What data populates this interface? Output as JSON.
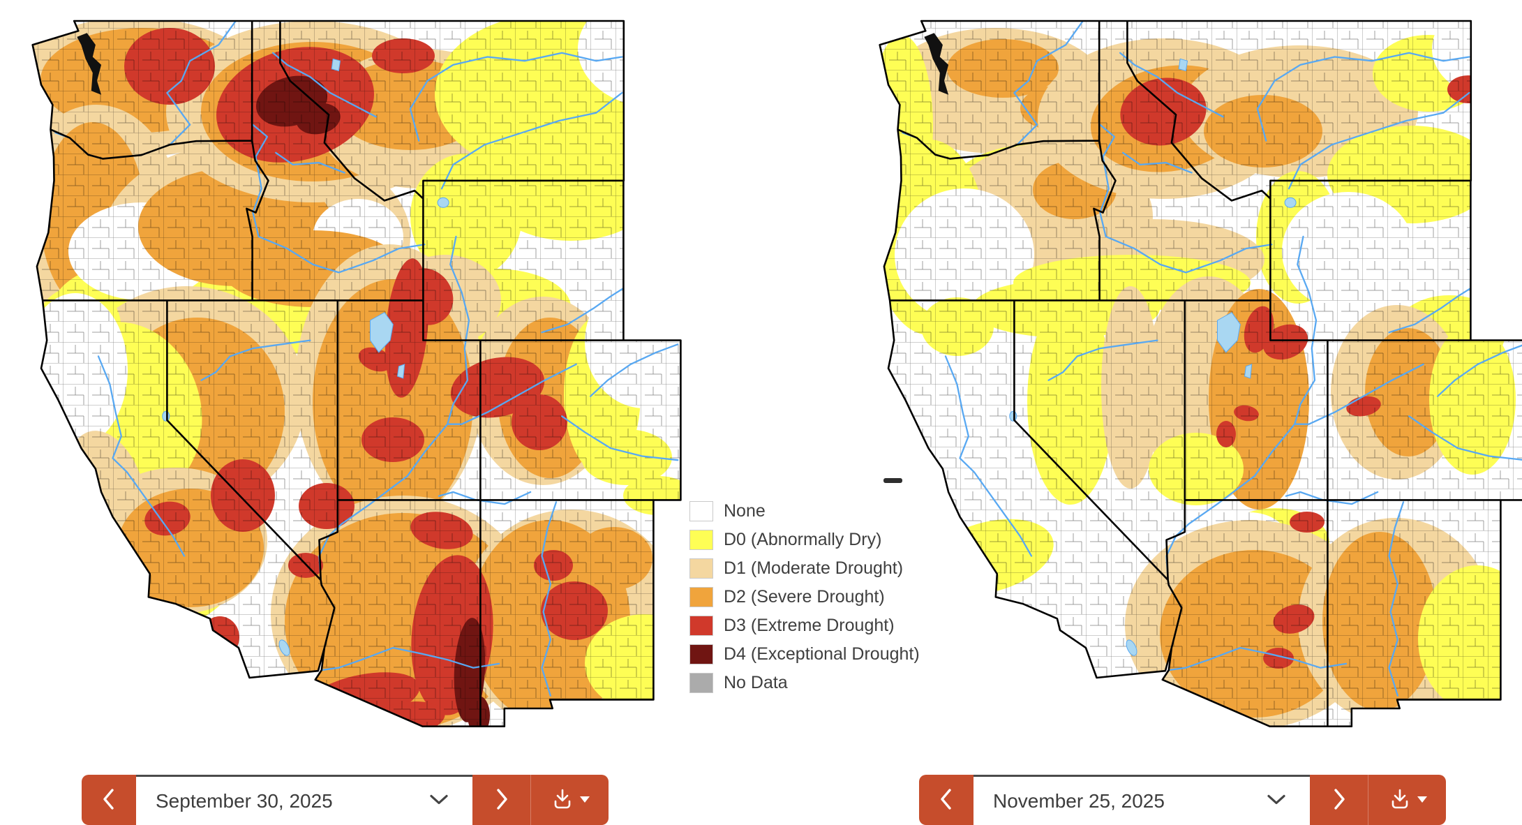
{
  "legend": {
    "items": [
      {
        "id": "none",
        "label": "None",
        "color": "#FFFFFF"
      },
      {
        "id": "d0",
        "label": "D0 (Abnormally Dry)",
        "color": "#FEFE55"
      },
      {
        "id": "d1",
        "label": "D1 (Moderate Drought)",
        "color": "#F4D7A0"
      },
      {
        "id": "d2",
        "label": "D2 (Severe Drought)",
        "color": "#F0A43C"
      },
      {
        "id": "d3",
        "label": "D3 (Extreme Drought)",
        "color": "#D0392B"
      },
      {
        "id": "d4",
        "label": "D4 (Exceptional Drought)",
        "color": "#701512"
      },
      {
        "id": "nodata",
        "label": "No Data",
        "color": "#ABABAB"
      }
    ]
  },
  "maps": {
    "left": {
      "date": "September 30, 2025"
    },
    "right": {
      "date": "November 25, 2025"
    }
  },
  "controls": {
    "left": {
      "date_value": "September 30, 2025"
    },
    "right": {
      "date_value": "November 25, 2025"
    },
    "icons": {
      "prev": "chevron-left",
      "next": "chevron-right",
      "open": "chevron-down",
      "download": "download-tray-arrow",
      "download_menu": "caret-down"
    }
  },
  "colors": {
    "button": "#C64D2C",
    "river": "#58A8F2",
    "lake": "#A9D7F2",
    "state_border": "#000000",
    "legend_text": "#3F3F3F",
    "date_text": "#3D3D3D",
    "select_border_top": "#4A4A4A"
  }
}
